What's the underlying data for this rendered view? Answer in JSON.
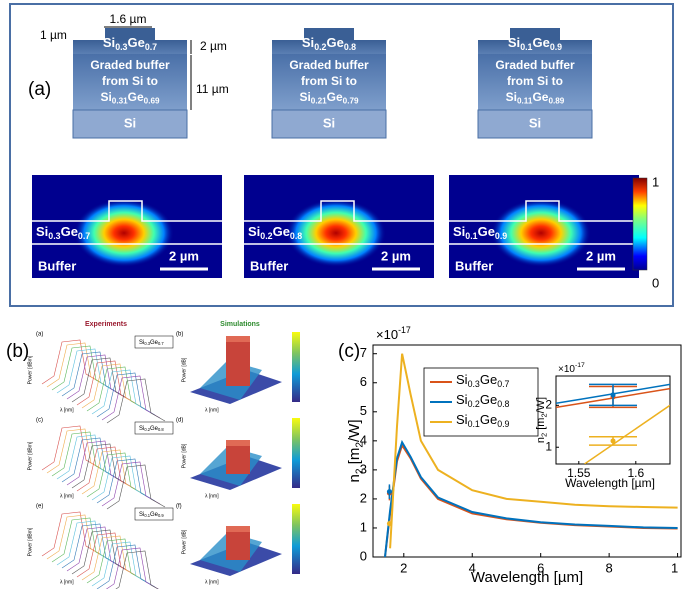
{
  "panel_a": {
    "label": "(a)",
    "dimensions": [
      "1 µm",
      "1.6 µm",
      "2 µm",
      "11 µm"
    ],
    "structures": [
      {
        "top": [
          "Si",
          "0.3",
          "Ge",
          "0.7"
        ],
        "buffer_lines": [
          "Graded buffer",
          "from Si to"
        ],
        "buffer_alloy": [
          "Si",
          "0.31",
          "Ge",
          "0.69"
        ],
        "substrate": "Si"
      },
      {
        "top": [
          "Si",
          "0.2",
          "Ge",
          "0.8"
        ],
        "buffer_lines": [
          "Graded buffer",
          "from Si to"
        ],
        "buffer_alloy": [
          "Si",
          "0.21",
          "Ge",
          "0.79"
        ],
        "substrate": "Si"
      },
      {
        "top": [
          "Si",
          "0.1",
          "Ge",
          "0.9"
        ],
        "buffer_lines": [
          "Graded buffer",
          "from Si to"
        ],
        "buffer_alloy": [
          "Si",
          "0.11",
          "Ge",
          "0.89"
        ],
        "substrate": "Si"
      }
    ],
    "mode_profiles": [
      {
        "core": [
          "Si",
          "0.3",
          "Ge",
          "0.7"
        ],
        "cladding": "Buffer",
        "scale": "2 µm"
      },
      {
        "core": [
          "Si",
          "0.2",
          "Ge",
          "0.8"
        ],
        "cladding": "Buffer",
        "scale": "2 µm"
      },
      {
        "core": [
          "Si",
          "0.1",
          "Ge",
          "0.9"
        ],
        "cladding": "Buffer",
        "scale": "2 µm"
      }
    ],
    "colorbar_ticks": [
      0,
      1
    ]
  },
  "panel_b": {
    "label": "(b)",
    "column_titles": [
      "Experiments",
      "Simulations"
    ],
    "rows": [
      {
        "letters": [
          "(a)",
          "(b)"
        ],
        "sample": [
          "Si",
          "0.3",
          "Ge",
          "0.7"
        ]
      },
      {
        "letters": [
          "(c)",
          "(d)"
        ],
        "sample": [
          "Si",
          "0.2",
          "Ge",
          "0.8"
        ]
      },
      {
        "letters": [
          "(e)",
          "(f)"
        ],
        "sample": [
          "Si",
          "0.1",
          "Ge",
          "0.9"
        ]
      }
    ],
    "axis_labels": [
      "Power [dBm]",
      "λ [nm]",
      "Power [dB]"
    ]
  },
  "panel_c": {
    "type": "line",
    "label": "(c)",
    "x_label": "Wavelength [µm]",
    "y_label": [
      "n",
      "2",
      " [m",
      "2",
      "/W]"
    ],
    "exponent": [
      "×10",
      "-17"
    ],
    "xlim": [
      1.1,
      10.1
    ],
    "ylim": [
      0,
      7.3
    ],
    "xticks": [
      2,
      4,
      6,
      8,
      {
        "value": 10,
        "label": "1"
      }
    ],
    "yticks": [
      0,
      1,
      2,
      3,
      4,
      5,
      6,
      7
    ],
    "x": [
      1.45,
      1.6,
      1.8,
      1.95,
      2.2,
      2.5,
      3,
      4,
      5,
      6,
      7,
      8,
      9,
      10
    ],
    "series": [
      {
        "name": [
          "Si",
          "0.3",
          "Ge",
          "0.7"
        ],
        "color": "#d95319",
        "values": [
          0,
          1.5,
          3.3,
          3.85,
          3.4,
          2.7,
          2.0,
          1.5,
          1.3,
          1.18,
          1.1,
          1.05,
          1.0,
          0.98
        ],
        "measurement": {
          "x": 1.58,
          "y": 2.2,
          "yerr": 0.25
        }
      },
      {
        "name": [
          "Si",
          "0.2",
          "Ge",
          "0.8"
        ],
        "color": "#0072bd",
        "values": [
          0,
          1.6,
          3.4,
          3.95,
          3.45,
          2.75,
          2.05,
          1.55,
          1.33,
          1.2,
          1.12,
          1.07,
          1.02,
          1.0
        ],
        "measurement": {
          "x": 1.58,
          "y": 2.25,
          "yerr": 0.25
        }
      },
      {
        "name": [
          "Si",
          "0.1",
          "Ge",
          "0.9"
        ],
        "color": "#edb120",
        "values": [
          null,
          0.3,
          4.5,
          7.0,
          5.6,
          4.0,
          3.0,
          2.3,
          2.0,
          1.9,
          1.8,
          1.75,
          1.72,
          1.7
        ],
        "measurement": {
          "x": 1.58,
          "y": 1.15,
          "yerr": 0.1
        }
      }
    ],
    "inset": {
      "xlim": [
        1.53,
        1.63
      ],
      "ylim": [
        0.6,
        2.7
      ],
      "xticks": [
        1.55,
        1.6
      ],
      "yticks": [
        1,
        2
      ],
      "x_label": "Wavelength [µm]",
      "y_label": [
        "n",
        "2",
        " [m",
        "2",
        "/W]"
      ],
      "exponent": [
        "×10",
        "-17"
      ],
      "x": [
        1.53,
        1.555,
        1.63
      ],
      "series_values": [
        [
          1.95,
          2.06,
          2.4
        ],
        [
          2.05,
          2.16,
          2.5
        ],
        [
          null,
          0.6,
          2.0
        ]
      ]
    }
  }
}
